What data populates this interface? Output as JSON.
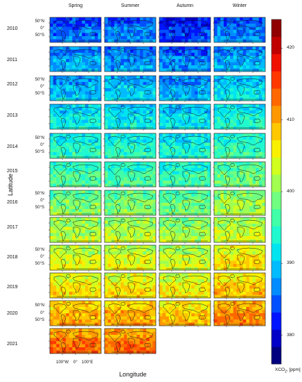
{
  "seasons": [
    "Spring",
    "Summer",
    "Autumn",
    "Winter"
  ],
  "years": [
    "2010",
    "2011",
    "2012",
    "2013",
    "2014",
    "2015",
    "2016",
    "2017",
    "2018",
    "2019",
    "2020",
    "2021"
  ],
  "lat_ticks": [
    "50°N",
    "0°",
    "50°S"
  ],
  "lon_ticks": [
    "100°W",
    "0°",
    "100°E"
  ],
  "xlabel": "Longitude",
  "ylabel": "Latitude",
  "colorbar": {
    "min": 376,
    "max": 424,
    "ticks": [
      "380",
      "390",
      "400",
      "410",
      "420"
    ],
    "tick_values": [
      380,
      390,
      400,
      410,
      420
    ],
    "title_prefix": "XCO",
    "title_sub": "2",
    "title_unit": ", [ppm]",
    "colors": [
      "#000080",
      "#0000c8",
      "#0014ff",
      "#0050ff",
      "#008cff",
      "#00bcff",
      "#00e4f0",
      "#20f8d0",
      "#40ffa8",
      "#70ff80",
      "#a0ff50",
      "#d0ff20",
      "#f8f000",
      "#ffc800",
      "#ff9800",
      "#ff6800",
      "#ff3800",
      "#f01000",
      "#c00000",
      "#900000"
    ]
  },
  "chart_data": {
    "type": "heatmap",
    "description_variable": "XCO2, [ppm]",
    "rows": [
      "2010",
      "2011",
      "2012",
      "2013",
      "2014",
      "2015",
      "2016",
      "2017",
      "2018",
      "2019",
      "2020",
      "2021"
    ],
    "columns": [
      "Spring",
      "Summer",
      "Autumn",
      "Winter"
    ],
    "mean_values": [
      [
        385,
        386,
        383,
        386
      ],
      [
        388,
        387,
        386,
        388
      ],
      [
        389,
        390,
        388,
        391
      ],
      [
        392,
        392,
        391,
        393
      ],
      [
        394,
        394,
        393,
        395
      ],
      [
        396,
        396,
        395,
        398
      ],
      [
        399,
        399,
        398,
        401
      ],
      [
        402,
        402,
        401,
        403
      ],
      [
        404,
        404,
        403,
        406
      ],
      [
        406,
        406,
        405,
        408
      ],
      [
        409,
        409,
        408,
        411
      ],
      [
        412,
        412,
        null,
        null
      ]
    ],
    "color_range": [
      376,
      424
    ]
  }
}
